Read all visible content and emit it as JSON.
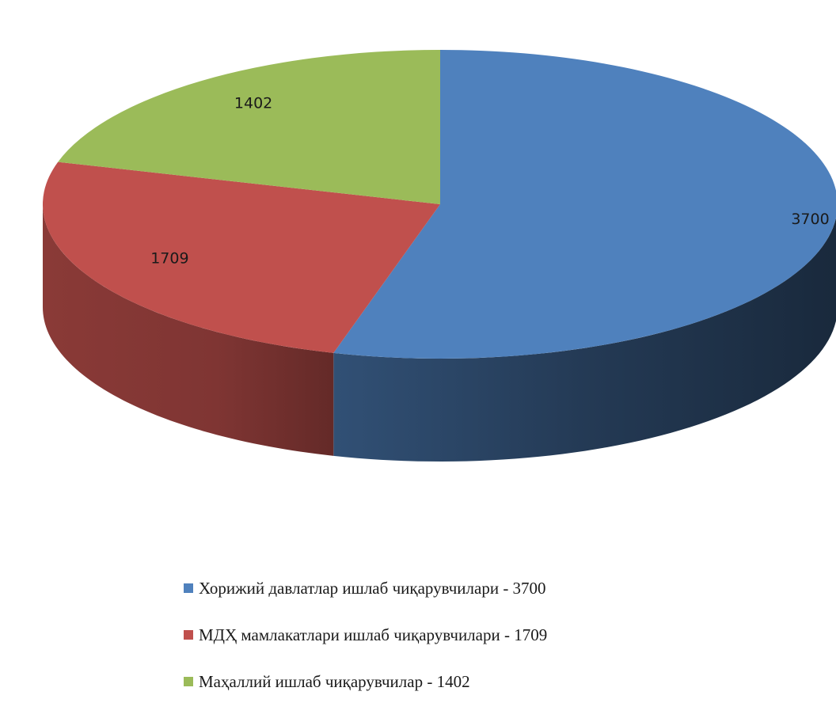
{
  "chart_data": {
    "type": "pie",
    "style": "3d",
    "title": "",
    "categories": [
      "Хорижий давлатлар ишлаб чиқарувчилари - 3700",
      "МДҲ мамлакатлари ишлаб чиқарувчилари - 1709",
      "Маҳаллий ишлаб чиқарувчилар - 1402"
    ],
    "values": [
      3700,
      1709,
      1402
    ],
    "data_labels": [
      "3700",
      "1709",
      "1402"
    ],
    "colors": [
      "#4f81bd",
      "#c0504d",
      "#9bbb59"
    ],
    "legend_position": "bottom"
  }
}
